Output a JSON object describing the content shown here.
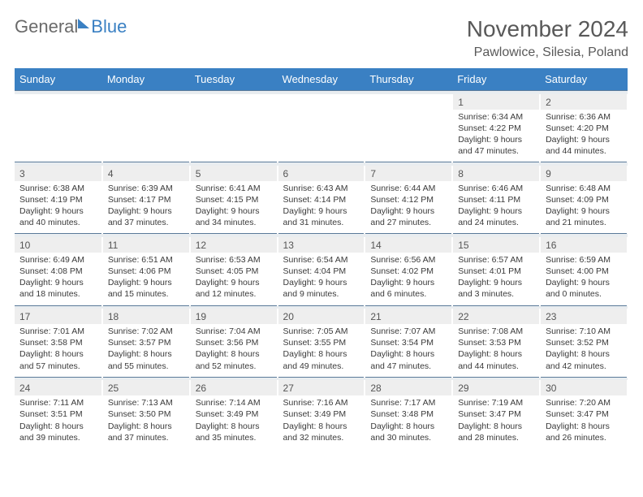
{
  "brand": {
    "general": "General",
    "blue": "Blue"
  },
  "title": "November 2024",
  "location": "Pawlowice, Silesia, Poland",
  "colors": {
    "header_bg": "#3a80c3",
    "daynum_bg": "#eeeeee",
    "separator": "#e9edf0",
    "text": "#3a3a3a",
    "title_text": "#595959"
  },
  "day_headers": [
    "Sunday",
    "Monday",
    "Tuesday",
    "Wednesday",
    "Thursday",
    "Friday",
    "Saturday"
  ],
  "weeks": [
    [
      null,
      null,
      null,
      null,
      null,
      {
        "n": "1",
        "sr": "6:34 AM",
        "ss": "4:22 PM",
        "d1": "9 hours",
        "d2": "and 47 minutes."
      },
      {
        "n": "2",
        "sr": "6:36 AM",
        "ss": "4:20 PM",
        "d1": "9 hours",
        "d2": "and 44 minutes."
      }
    ],
    [
      {
        "n": "3",
        "sr": "6:38 AM",
        "ss": "4:19 PM",
        "d1": "9 hours",
        "d2": "and 40 minutes."
      },
      {
        "n": "4",
        "sr": "6:39 AM",
        "ss": "4:17 PM",
        "d1": "9 hours",
        "d2": "and 37 minutes."
      },
      {
        "n": "5",
        "sr": "6:41 AM",
        "ss": "4:15 PM",
        "d1": "9 hours",
        "d2": "and 34 minutes."
      },
      {
        "n": "6",
        "sr": "6:43 AM",
        "ss": "4:14 PM",
        "d1": "9 hours",
        "d2": "and 31 minutes."
      },
      {
        "n": "7",
        "sr": "6:44 AM",
        "ss": "4:12 PM",
        "d1": "9 hours",
        "d2": "and 27 minutes."
      },
      {
        "n": "8",
        "sr": "6:46 AM",
        "ss": "4:11 PM",
        "d1": "9 hours",
        "d2": "and 24 minutes."
      },
      {
        "n": "9",
        "sr": "6:48 AM",
        "ss": "4:09 PM",
        "d1": "9 hours",
        "d2": "and 21 minutes."
      }
    ],
    [
      {
        "n": "10",
        "sr": "6:49 AM",
        "ss": "4:08 PM",
        "d1": "9 hours",
        "d2": "and 18 minutes."
      },
      {
        "n": "11",
        "sr": "6:51 AM",
        "ss": "4:06 PM",
        "d1": "9 hours",
        "d2": "and 15 minutes."
      },
      {
        "n": "12",
        "sr": "6:53 AM",
        "ss": "4:05 PM",
        "d1": "9 hours",
        "d2": "and 12 minutes."
      },
      {
        "n": "13",
        "sr": "6:54 AM",
        "ss": "4:04 PM",
        "d1": "9 hours",
        "d2": "and 9 minutes."
      },
      {
        "n": "14",
        "sr": "6:56 AM",
        "ss": "4:02 PM",
        "d1": "9 hours",
        "d2": "and 6 minutes."
      },
      {
        "n": "15",
        "sr": "6:57 AM",
        "ss": "4:01 PM",
        "d1": "9 hours",
        "d2": "and 3 minutes."
      },
      {
        "n": "16",
        "sr": "6:59 AM",
        "ss": "4:00 PM",
        "d1": "9 hours",
        "d2": "and 0 minutes."
      }
    ],
    [
      {
        "n": "17",
        "sr": "7:01 AM",
        "ss": "3:58 PM",
        "d1": "8 hours",
        "d2": "and 57 minutes."
      },
      {
        "n": "18",
        "sr": "7:02 AM",
        "ss": "3:57 PM",
        "d1": "8 hours",
        "d2": "and 55 minutes."
      },
      {
        "n": "19",
        "sr": "7:04 AM",
        "ss": "3:56 PM",
        "d1": "8 hours",
        "d2": "and 52 minutes."
      },
      {
        "n": "20",
        "sr": "7:05 AM",
        "ss": "3:55 PM",
        "d1": "8 hours",
        "d2": "and 49 minutes."
      },
      {
        "n": "21",
        "sr": "7:07 AM",
        "ss": "3:54 PM",
        "d1": "8 hours",
        "d2": "and 47 minutes."
      },
      {
        "n": "22",
        "sr": "7:08 AM",
        "ss": "3:53 PM",
        "d1": "8 hours",
        "d2": "and 44 minutes."
      },
      {
        "n": "23",
        "sr": "7:10 AM",
        "ss": "3:52 PM",
        "d1": "8 hours",
        "d2": "and 42 minutes."
      }
    ],
    [
      {
        "n": "24",
        "sr": "7:11 AM",
        "ss": "3:51 PM",
        "d1": "8 hours",
        "d2": "and 39 minutes."
      },
      {
        "n": "25",
        "sr": "7:13 AM",
        "ss": "3:50 PM",
        "d1": "8 hours",
        "d2": "and 37 minutes."
      },
      {
        "n": "26",
        "sr": "7:14 AM",
        "ss": "3:49 PM",
        "d1": "8 hours",
        "d2": "and 35 minutes."
      },
      {
        "n": "27",
        "sr": "7:16 AM",
        "ss": "3:49 PM",
        "d1": "8 hours",
        "d2": "and 32 minutes."
      },
      {
        "n": "28",
        "sr": "7:17 AM",
        "ss": "3:48 PM",
        "d1": "8 hours",
        "d2": "and 30 minutes."
      },
      {
        "n": "29",
        "sr": "7:19 AM",
        "ss": "3:47 PM",
        "d1": "8 hours",
        "d2": "and 28 minutes."
      },
      {
        "n": "30",
        "sr": "7:20 AM",
        "ss": "3:47 PM",
        "d1": "8 hours",
        "d2": "and 26 minutes."
      }
    ]
  ],
  "labels": {
    "sunrise": "Sunrise: ",
    "sunset": "Sunset: ",
    "daylight": "Daylight: "
  }
}
